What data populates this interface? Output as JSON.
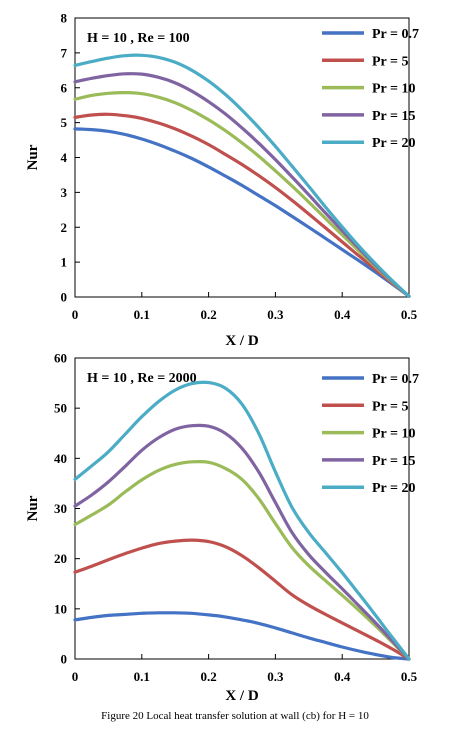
{
  "chart_data": [
    {
      "type": "line",
      "title": "",
      "annotation": "H = 10 , Re = 100",
      "xlabel": "X / D",
      "ylabel": "Nur",
      "xlim": [
        0,
        0.5
      ],
      "ylim": [
        0,
        8
      ],
      "xticks": [
        "0",
        "0.1",
        "0.2",
        "0.3",
        "0.4",
        "0.5"
      ],
      "yticks": [
        "0",
        "1",
        "2",
        "3",
        "4",
        "5",
        "6",
        "7",
        "8"
      ],
      "grid": false,
      "legend_position": "top-right",
      "series": [
        {
          "name": "Pr = 0.7",
          "color": "#4472c4",
          "x": [
            0,
            0.025,
            0.05,
            0.075,
            0.1,
            0.125,
            0.15,
            0.175,
            0.2,
            0.225,
            0.25,
            0.275,
            0.3,
            0.325,
            0.35,
            0.375,
            0.4,
            0.425,
            0.45,
            0.475,
            0.5
          ],
          "y": [
            4.82,
            4.8,
            4.75,
            4.66,
            4.53,
            4.37,
            4.18,
            3.97,
            3.73,
            3.47,
            3.2,
            2.91,
            2.62,
            2.31,
            2.0,
            1.68,
            1.36,
            1.04,
            0.71,
            0.37,
            0.02
          ]
        },
        {
          "name": "Pr = 5",
          "color": "#c0504d",
          "x": [
            0,
            0.025,
            0.05,
            0.075,
            0.1,
            0.125,
            0.15,
            0.175,
            0.2,
            0.225,
            0.25,
            0.275,
            0.3,
            0.325,
            0.35,
            0.375,
            0.4,
            0.425,
            0.45,
            0.475,
            0.5
          ],
          "y": [
            5.15,
            5.22,
            5.24,
            5.2,
            5.12,
            4.99,
            4.82,
            4.61,
            4.37,
            4.09,
            3.8,
            3.48,
            3.14,
            2.77,
            2.38,
            1.98,
            1.58,
            1.18,
            0.79,
            0.4,
            0.02
          ]
        },
        {
          "name": "Pr = 10",
          "color": "#9bbb59",
          "x": [
            0,
            0.025,
            0.05,
            0.075,
            0.1,
            0.125,
            0.15,
            0.175,
            0.2,
            0.225,
            0.25,
            0.275,
            0.3,
            0.325,
            0.35,
            0.375,
            0.4,
            0.425,
            0.45,
            0.475,
            0.5
          ],
          "y": [
            5.67,
            5.78,
            5.84,
            5.86,
            5.83,
            5.73,
            5.57,
            5.35,
            5.08,
            4.77,
            4.42,
            4.04,
            3.62,
            3.18,
            2.72,
            2.25,
            1.78,
            1.32,
            0.87,
            0.43,
            0.02
          ]
        },
        {
          "name": "Pr = 15",
          "color": "#8064a2",
          "x": [
            0,
            0.025,
            0.05,
            0.075,
            0.1,
            0.125,
            0.15,
            0.175,
            0.2,
            0.225,
            0.25,
            0.275,
            0.3,
            0.325,
            0.35,
            0.375,
            0.4,
            0.425,
            0.45,
            0.475,
            0.5
          ],
          "y": [
            6.17,
            6.27,
            6.35,
            6.4,
            6.39,
            6.3,
            6.14,
            5.9,
            5.6,
            5.25,
            4.85,
            4.41,
            3.94,
            3.44,
            2.93,
            2.41,
            1.9,
            1.4,
            0.91,
            0.45,
            0.02
          ]
        },
        {
          "name": "Pr = 20",
          "color": "#4bacc6",
          "x": [
            0,
            0.025,
            0.05,
            0.075,
            0.1,
            0.125,
            0.15,
            0.175,
            0.2,
            0.225,
            0.25,
            0.275,
            0.3,
            0.325,
            0.35,
            0.375,
            0.4,
            0.425,
            0.45,
            0.475,
            0.5
          ],
          "y": [
            6.64,
            6.75,
            6.85,
            6.92,
            6.93,
            6.87,
            6.73,
            6.5,
            6.19,
            5.81,
            5.36,
            4.86,
            4.32,
            3.75,
            3.17,
            2.58,
            2.01,
            1.46,
            0.95,
            0.47,
            0.02
          ]
        }
      ]
    },
    {
      "type": "line",
      "title": "",
      "annotation": "H = 10 , Re = 2000",
      "xlabel": "X / D",
      "ylabel": "Nur",
      "xlim": [
        0,
        0.5
      ],
      "ylim": [
        0,
        60
      ],
      "xticks": [
        "0",
        "0.1",
        "0.2",
        "0.3",
        "0.4",
        "0.5"
      ],
      "yticks": [
        "0",
        "10",
        "20",
        "30",
        "40",
        "50",
        "60"
      ],
      "grid": false,
      "legend_position": "top-right",
      "series": [
        {
          "name": "Pr = 0.7",
          "color": "#4472c4",
          "x": [
            0,
            0.025,
            0.05,
            0.075,
            0.1,
            0.125,
            0.15,
            0.175,
            0.2,
            0.225,
            0.25,
            0.275,
            0.3,
            0.325,
            0.35,
            0.375,
            0.4,
            0.425,
            0.45,
            0.475,
            0.5
          ],
          "y": [
            7.8,
            8.3,
            8.7,
            8.9,
            9.1,
            9.2,
            9.2,
            9.1,
            8.8,
            8.4,
            7.8,
            7.1,
            6.2,
            5.2,
            4.2,
            3.3,
            2.4,
            1.6,
            0.9,
            0.3,
            0.0
          ]
        },
        {
          "name": "Pr = 5",
          "color": "#c0504d",
          "x": [
            0,
            0.025,
            0.05,
            0.075,
            0.1,
            0.125,
            0.15,
            0.175,
            0.2,
            0.225,
            0.25,
            0.275,
            0.3,
            0.325,
            0.35,
            0.375,
            0.4,
            0.425,
            0.45,
            0.475,
            0.5
          ],
          "y": [
            17.3,
            18.5,
            19.8,
            21.0,
            22.1,
            23.0,
            23.5,
            23.7,
            23.4,
            22.4,
            20.6,
            18.2,
            15.5,
            12.8,
            10.7,
            8.9,
            7.2,
            5.5,
            3.8,
            2.0,
            0.0
          ]
        },
        {
          "name": "Pr = 10",
          "color": "#9bbb59",
          "x": [
            0,
            0.025,
            0.05,
            0.075,
            0.1,
            0.125,
            0.15,
            0.175,
            0.2,
            0.225,
            0.25,
            0.275,
            0.3,
            0.325,
            0.35,
            0.375,
            0.4,
            0.425,
            0.45,
            0.475,
            0.5
          ],
          "y": [
            26.8,
            28.7,
            30.7,
            33.3,
            35.7,
            37.6,
            38.8,
            39.3,
            39.2,
            38.0,
            35.8,
            32.0,
            27.0,
            22.2,
            18.6,
            15.6,
            12.7,
            9.7,
            6.6,
            3.3,
            0.0
          ]
        },
        {
          "name": "Pr = 15",
          "color": "#8064a2",
          "x": [
            0,
            0.025,
            0.05,
            0.075,
            0.1,
            0.125,
            0.15,
            0.175,
            0.2,
            0.225,
            0.25,
            0.275,
            0.3,
            0.325,
            0.35,
            0.375,
            0.4,
            0.425,
            0.45,
            0.475,
            0.5
          ],
          "y": [
            30.5,
            32.7,
            35.3,
            38.4,
            41.6,
            44.1,
            45.8,
            46.5,
            46.4,
            45.0,
            42.0,
            37.3,
            31.2,
            25.2,
            20.8,
            17.3,
            14.0,
            10.6,
            7.2,
            3.6,
            0.0
          ]
        },
        {
          "name": "Pr = 20",
          "color": "#4bacc6",
          "x": [
            0,
            0.025,
            0.05,
            0.075,
            0.1,
            0.125,
            0.15,
            0.175,
            0.2,
            0.225,
            0.25,
            0.275,
            0.3,
            0.325,
            0.35,
            0.375,
            0.4,
            0.425,
            0.45,
            0.475,
            0.5
          ],
          "y": [
            35.8,
            38.5,
            41.3,
            44.8,
            48.3,
            51.3,
            53.6,
            54.9,
            55.1,
            54.0,
            50.8,
            45.0,
            37.3,
            30.2,
            25.2,
            21.2,
            17.2,
            13.0,
            8.7,
            4.3,
            0.0
          ]
        }
      ]
    }
  ],
  "caption": "Figure 20 Local heat transfer solution at wall (cb) for H = 10"
}
